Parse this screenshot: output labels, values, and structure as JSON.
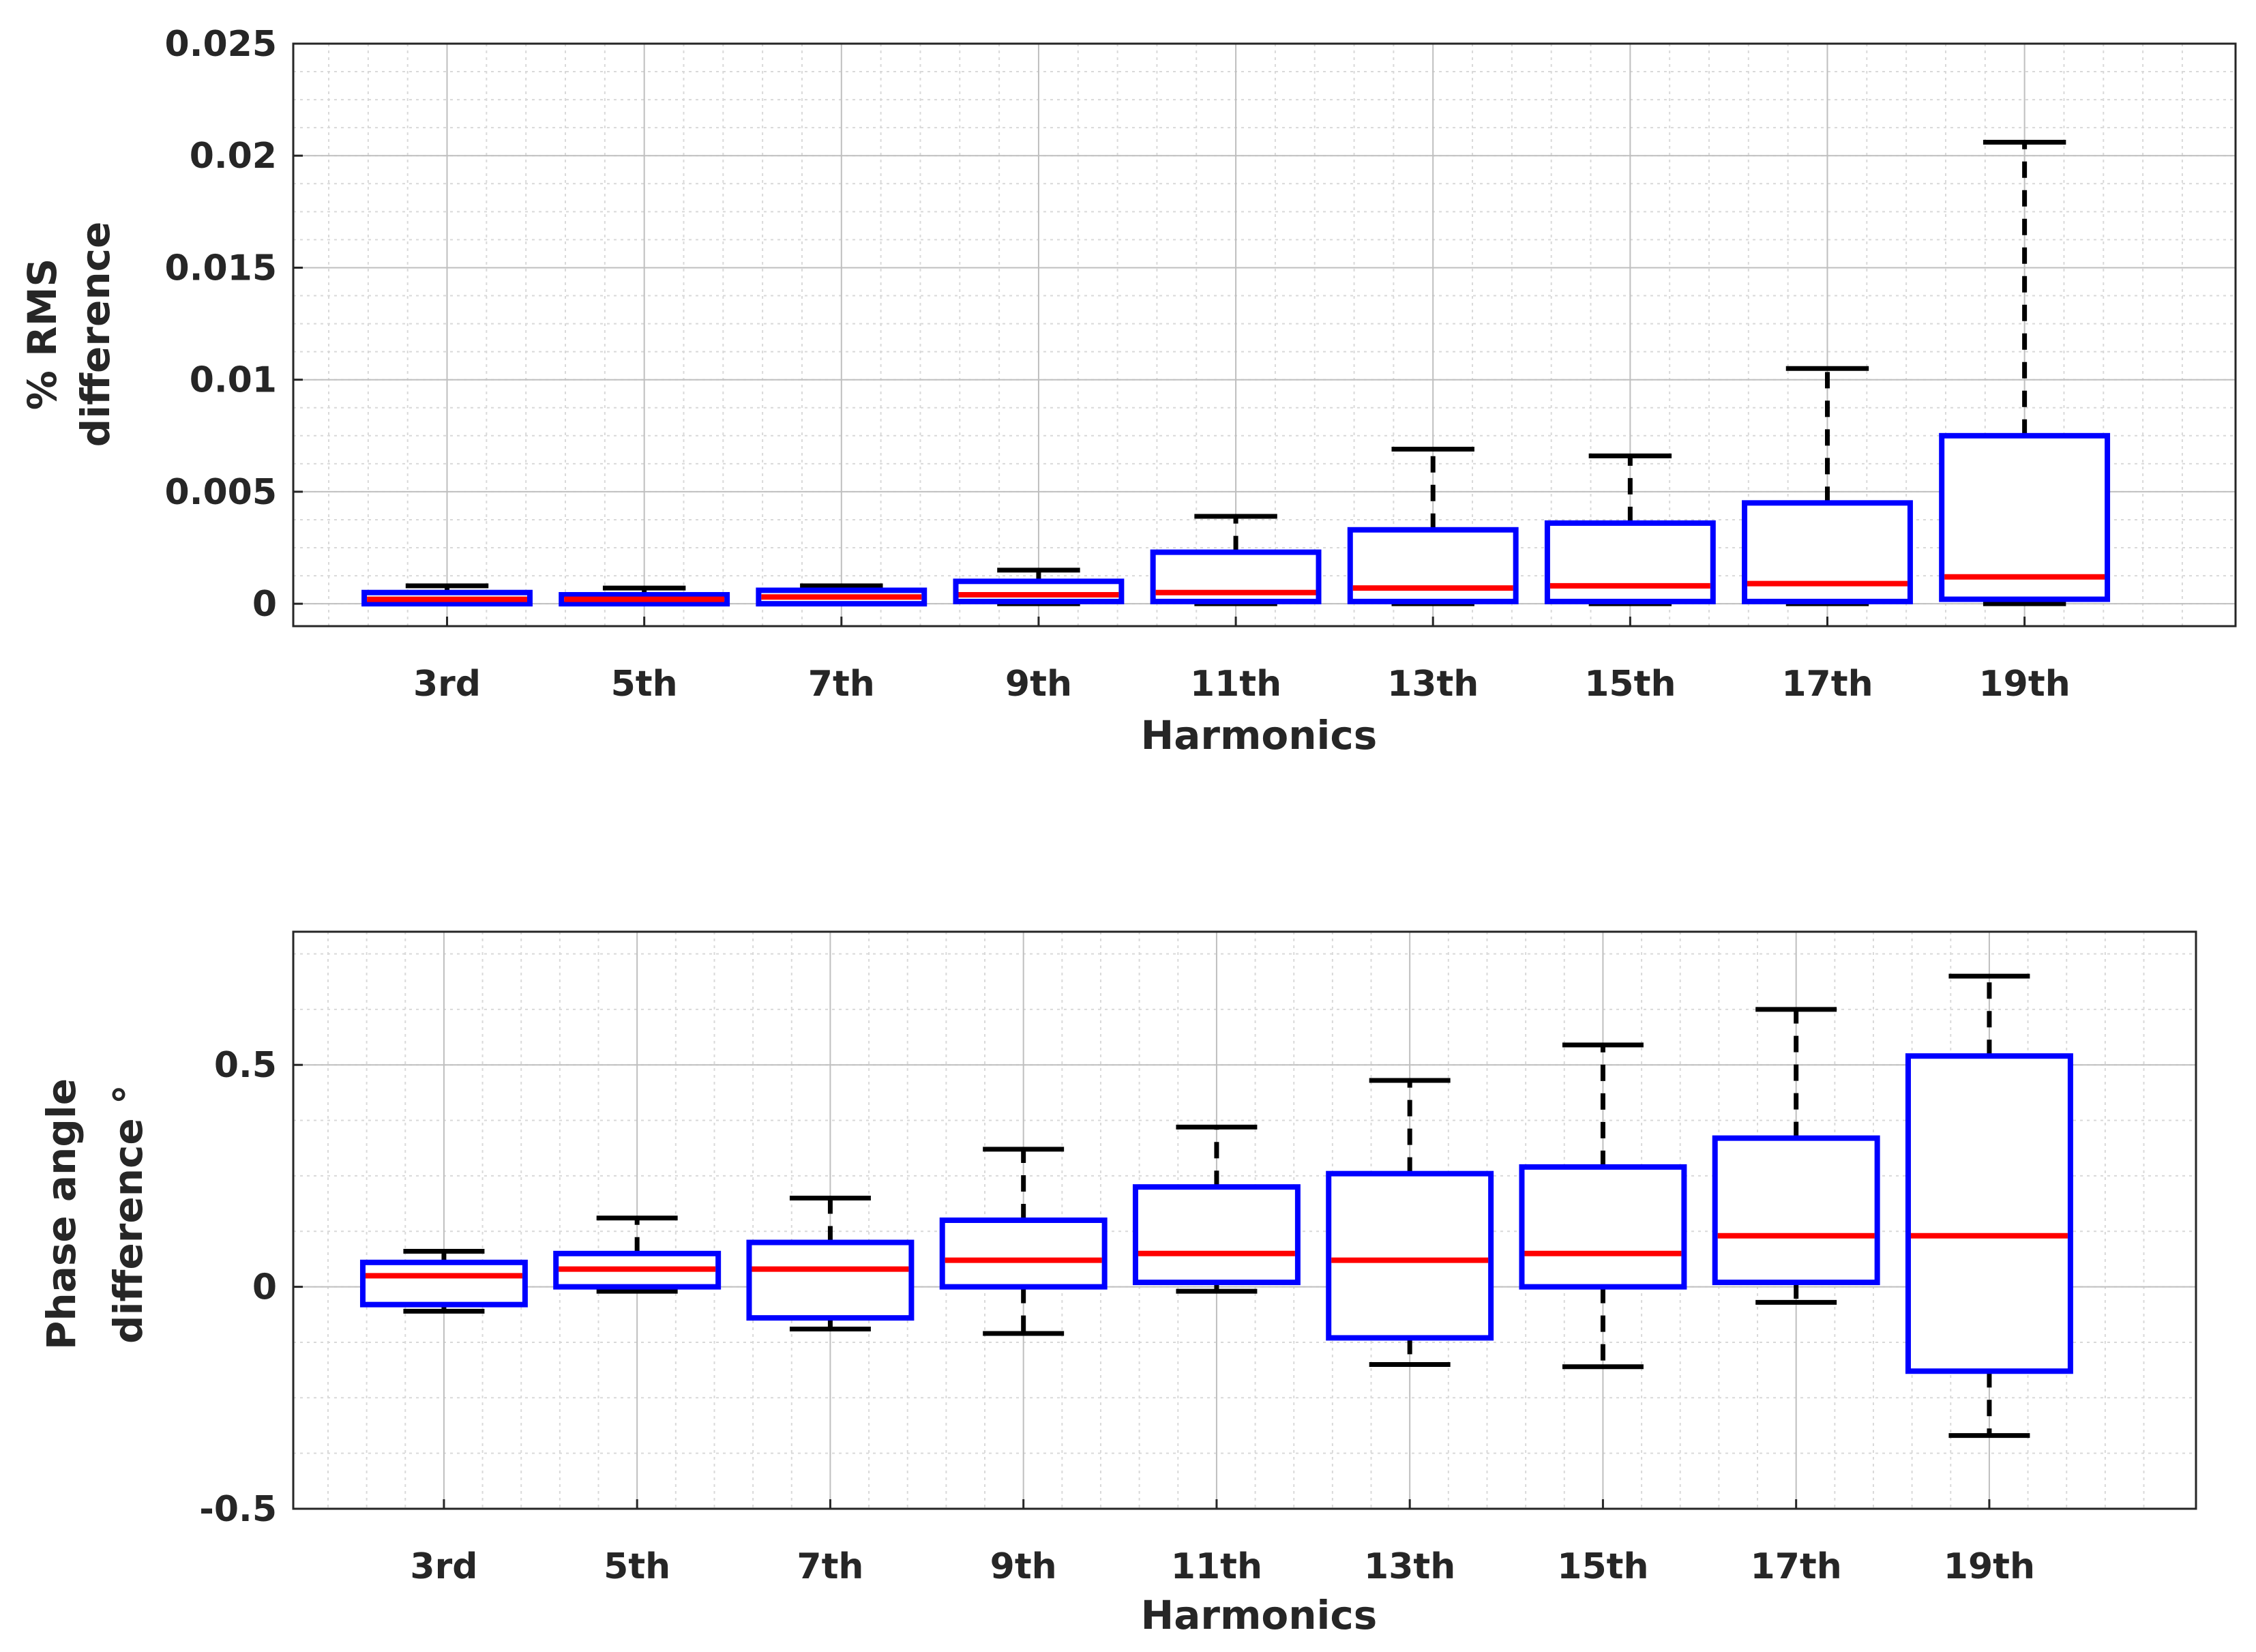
{
  "chart_data": [
    {
      "type": "boxplot",
      "title": "",
      "xlabel": "Harmonics",
      "ylabel_lines": [
        "% RMS",
        "difference"
      ],
      "categories": [
        "3rd",
        "5th",
        "7th",
        "9th",
        "11th",
        "13th",
        "15th",
        "17th",
        "19th"
      ],
      "ylim": [
        -0.001,
        0.025
      ],
      "yticks": [
        0,
        0.005,
        0.01,
        0.015,
        0.02,
        0.025
      ],
      "ytick_labels": [
        "0",
        "0.005",
        "0.01",
        "0.015",
        "0.02",
        "0.025"
      ],
      "grid": true,
      "minor_grid": true,
      "boxes": [
        {
          "whisker_low": 0.0,
          "q1": 0.0,
          "median": 0.0002,
          "q3": 0.0005,
          "whisker_high": 0.0008
        },
        {
          "whisker_low": 0.0,
          "q1": 0.0,
          "median": 0.0002,
          "q3": 0.0004,
          "whisker_high": 0.0007
        },
        {
          "whisker_low": 0.0,
          "q1": 0.0,
          "median": 0.0003,
          "q3": 0.0006,
          "whisker_high": 0.0008
        },
        {
          "whisker_low": 0.0,
          "q1": 0.0001,
          "median": 0.0004,
          "q3": 0.001,
          "whisker_high": 0.0015
        },
        {
          "whisker_low": 0.0,
          "q1": 0.0001,
          "median": 0.0005,
          "q3": 0.0023,
          "whisker_high": 0.0039
        },
        {
          "whisker_low": 0.0,
          "q1": 0.0001,
          "median": 0.0007,
          "q3": 0.0033,
          "whisker_high": 0.0069
        },
        {
          "whisker_low": 0.0,
          "q1": 0.0001,
          "median": 0.0008,
          "q3": 0.0036,
          "whisker_high": 0.0066
        },
        {
          "whisker_low": 0.0,
          "q1": 0.0001,
          "median": 0.0009,
          "q3": 0.0045,
          "whisker_high": 0.0105
        },
        {
          "whisker_low": 0.0,
          "q1": 0.0002,
          "median": 0.0012,
          "q3": 0.0075,
          "whisker_high": 0.0206
        }
      ]
    },
    {
      "type": "boxplot",
      "title": "",
      "xlabel": "Harmonics",
      "ylabel_lines": [
        "Phase angle",
        "difference °"
      ],
      "categories": [
        "3rd",
        "5th",
        "7th",
        "9th",
        "11th",
        "13th",
        "15th",
        "17th",
        "19th"
      ],
      "ylim": [
        -0.5,
        0.8
      ],
      "yticks": [
        -0.5,
        0,
        0.5
      ],
      "ytick_labels": [
        "-0.5",
        "0",
        "0.5"
      ],
      "grid": true,
      "minor_grid": true,
      "boxes": [
        {
          "whisker_low": -0.055,
          "q1": -0.04,
          "median": 0.025,
          "q3": 0.055,
          "whisker_high": 0.08
        },
        {
          "whisker_low": -0.01,
          "q1": 0.0,
          "median": 0.04,
          "q3": 0.075,
          "whisker_high": 0.155
        },
        {
          "whisker_low": -0.095,
          "q1": -0.07,
          "median": 0.04,
          "q3": 0.1,
          "whisker_high": 0.2
        },
        {
          "whisker_low": -0.105,
          "q1": 0.0,
          "median": 0.06,
          "q3": 0.15,
          "whisker_high": 0.31
        },
        {
          "whisker_low": -0.01,
          "q1": 0.01,
          "median": 0.075,
          "q3": 0.225,
          "whisker_high": 0.36
        },
        {
          "whisker_low": -0.175,
          "q1": -0.115,
          "median": 0.06,
          "q3": 0.255,
          "whisker_high": 0.465
        },
        {
          "whisker_low": -0.18,
          "q1": 0.0,
          "median": 0.075,
          "q3": 0.27,
          "whisker_high": 0.545
        },
        {
          "whisker_low": -0.035,
          "q1": 0.01,
          "median": 0.115,
          "q3": 0.335,
          "whisker_high": 0.625
        },
        {
          "whisker_low": -0.335,
          "q1": -0.19,
          "median": 0.115,
          "q3": 0.52,
          "whisker_high": 0.7
        }
      ]
    }
  ],
  "colors": {
    "box": "#0000ff",
    "median": "#ff0000",
    "whisker": "#000000",
    "axis": "#262626"
  }
}
